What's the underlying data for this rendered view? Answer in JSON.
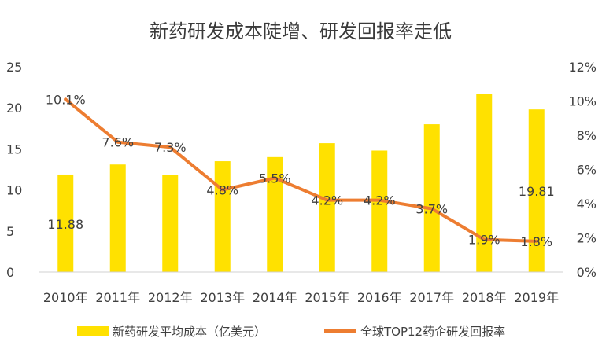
{
  "chart_data": {
    "type": "bar",
    "title": "新药研发成本陡增、研发回报率走低",
    "categories": [
      "2010年",
      "2011年",
      "2012年",
      "2013年",
      "2014年",
      "2015年",
      "2016年",
      "2017年",
      "2018年",
      "2019年"
    ],
    "series": [
      {
        "name": "新药研发平均成本（亿美元）",
        "type": "bar",
        "axis": "left",
        "values": [
          11.88,
          13.1,
          11.8,
          13.5,
          14.0,
          15.7,
          14.8,
          18.0,
          21.7,
          19.81
        ],
        "color": "#FFE100",
        "data_labels": {
          "0": "11.88",
          "9": "19.81"
        }
      },
      {
        "name": "全球TOP12药企研发回报率",
        "type": "line",
        "axis": "right",
        "values": [
          10.1,
          7.6,
          7.3,
          4.8,
          5.5,
          4.2,
          4.2,
          3.7,
          1.9,
          1.8
        ],
        "labels": [
          "10.1%",
          "7.6%",
          "7.3%",
          "4.8%",
          "5.5%",
          "4.2%",
          "4.2%",
          "3.7%",
          "1.9%",
          "1.8%"
        ],
        "color": "#ED7D31"
      }
    ],
    "y_left": {
      "min": 0,
      "max": 25,
      "ticks": [
        "0",
        "5",
        "10",
        "15",
        "20",
        "25"
      ]
    },
    "y_right": {
      "min": 0,
      "max": 12,
      "ticks": [
        "0%",
        "2%",
        "4%",
        "6%",
        "8%",
        "10%",
        "12%"
      ]
    },
    "grid": false,
    "legend": "bottom"
  }
}
